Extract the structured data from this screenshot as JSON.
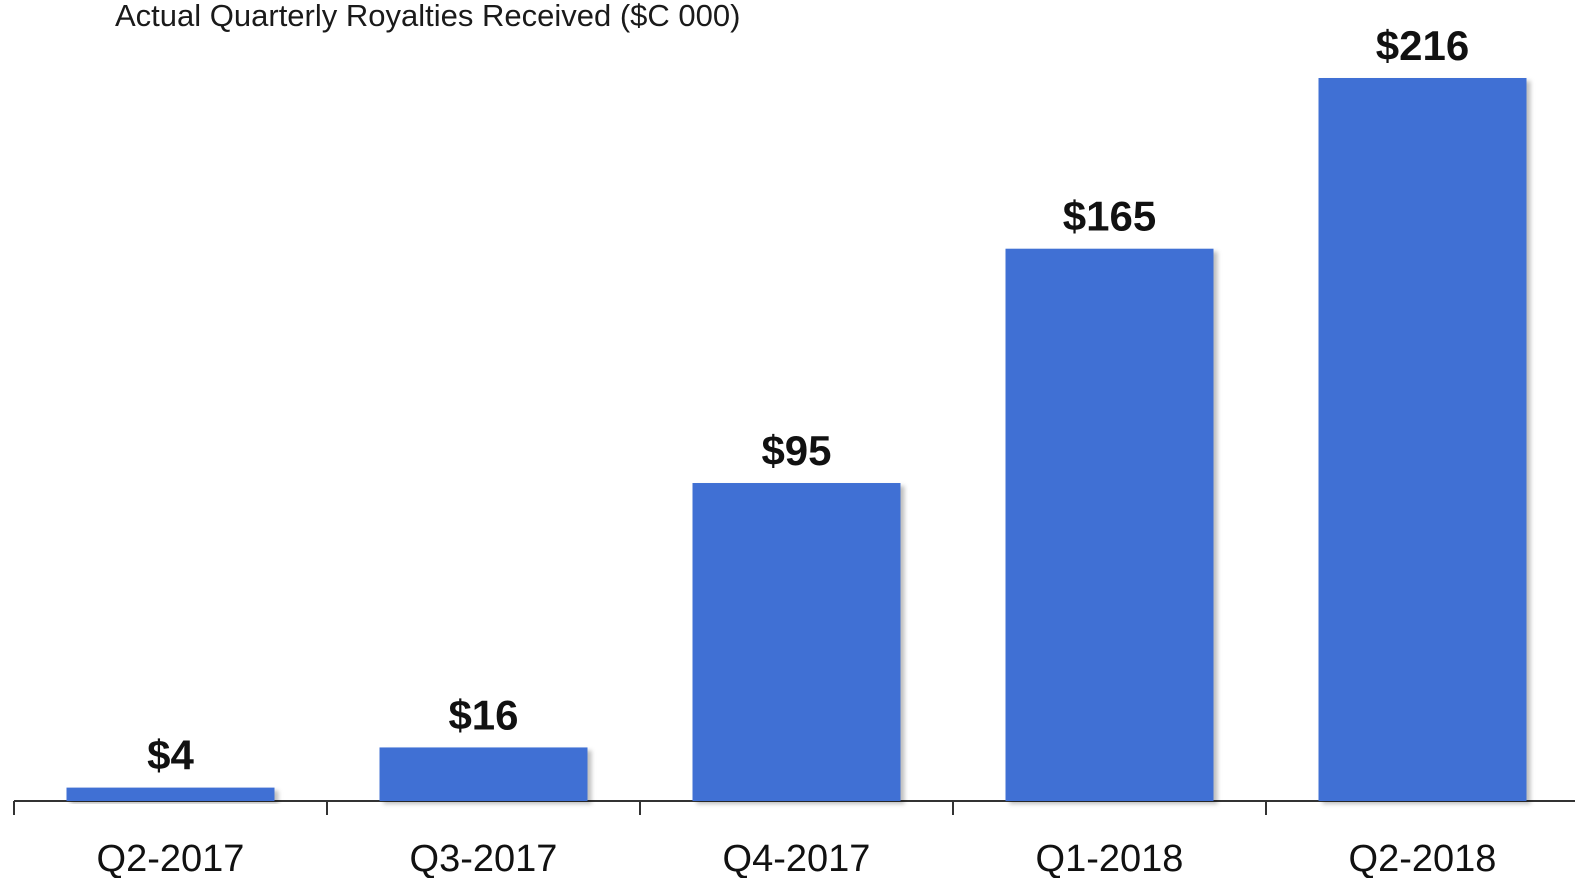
{
  "chart_data": {
    "type": "bar",
    "title": "Actual Quarterly Royalties Received ($C 000)",
    "categories": [
      "Q2-2017",
      "Q3-2017",
      "Q4-2017",
      "Q1-2018",
      "Q2-2018"
    ],
    "values": [
      4,
      16,
      95,
      165,
      216
    ],
    "value_labels": [
      "$4",
      "$16",
      "$95",
      "$165",
      "$216"
    ],
    "color": "#3f70d4"
  }
}
